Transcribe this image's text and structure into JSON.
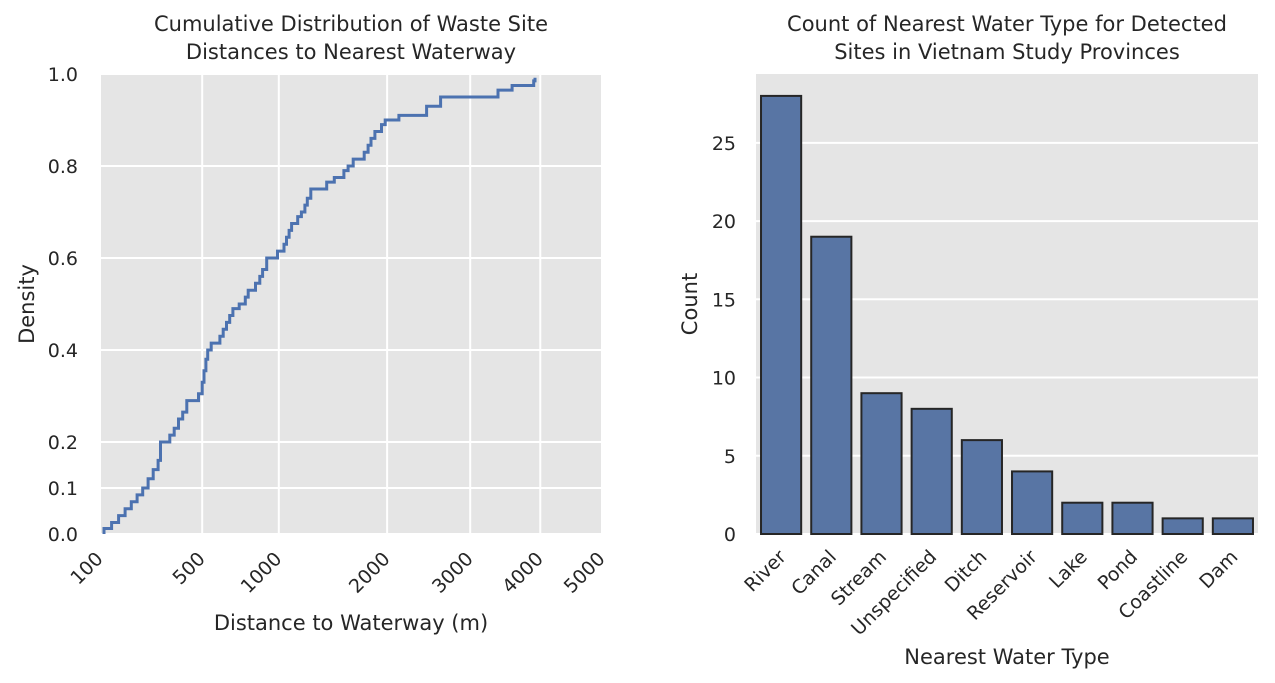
{
  "chart_data": [
    {
      "type": "line",
      "subtype": "ecdf",
      "title_line1": "Cumulative Distribution of Waste Site",
      "title_line2": "Distances to Nearest Waterway",
      "xlabel": "Distance to Waterway (m)",
      "ylabel": "Density",
      "xlim": [
        100,
        5000
      ],
      "ylim": [
        0,
        1
      ],
      "x_scale": "sqrt",
      "x_ticks": [
        100,
        500,
        1000,
        2000,
        3000,
        4000,
        5000
      ],
      "y_ticks": [
        0.0,
        0.1,
        0.2,
        0.4,
        0.6,
        0.8,
        1.0
      ],
      "y_tick_labels": [
        "0.0",
        "0.1",
        "0.2",
        "0.4",
        "0.6",
        "0.8",
        "1.0"
      ],
      "grid": true,
      "color": "#4c72b0",
      "points": [
        [
          110,
          0.012
        ],
        [
          130,
          0.025
        ],
        [
          150,
          0.04
        ],
        [
          170,
          0.055
        ],
        [
          190,
          0.07
        ],
        [
          210,
          0.085
        ],
        [
          230,
          0.1
        ],
        [
          250,
          0.12
        ],
        [
          270,
          0.14
        ],
        [
          290,
          0.16
        ],
        [
          300,
          0.2
        ],
        [
          340,
          0.215
        ],
        [
          360,
          0.23
        ],
        [
          380,
          0.25
        ],
        [
          400,
          0.265
        ],
        [
          420,
          0.29
        ],
        [
          480,
          0.305
        ],
        [
          500,
          0.33
        ],
        [
          510,
          0.355
        ],
        [
          520,
          0.38
        ],
        [
          530,
          0.4
        ],
        [
          550,
          0.415
        ],
        [
          600,
          0.43
        ],
        [
          620,
          0.445
        ],
        [
          640,
          0.46
        ],
        [
          660,
          0.475
        ],
        [
          680,
          0.49
        ],
        [
          720,
          0.5
        ],
        [
          760,
          0.515
        ],
        [
          780,
          0.53
        ],
        [
          830,
          0.545
        ],
        [
          860,
          0.56
        ],
        [
          880,
          0.575
        ],
        [
          910,
          0.6
        ],
        [
          990,
          0.615
        ],
        [
          1040,
          0.63
        ],
        [
          1060,
          0.645
        ],
        [
          1080,
          0.66
        ],
        [
          1100,
          0.675
        ],
        [
          1150,
          0.69
        ],
        [
          1180,
          0.7
        ],
        [
          1210,
          0.715
        ],
        [
          1230,
          0.73
        ],
        [
          1260,
          0.75
        ],
        [
          1400,
          0.765
        ],
        [
          1470,
          0.775
        ],
        [
          1560,
          0.79
        ],
        [
          1600,
          0.8
        ],
        [
          1650,
          0.815
        ],
        [
          1760,
          0.83
        ],
        [
          1800,
          0.845
        ],
        [
          1830,
          0.86
        ],
        [
          1870,
          0.875
        ],
        [
          1940,
          0.89
        ],
        [
          1980,
          0.9
        ],
        [
          2130,
          0.91
        ],
        [
          2450,
          0.93
        ],
        [
          2620,
          0.95
        ],
        [
          3380,
          0.965
        ],
        [
          3580,
          0.975
        ],
        [
          3900,
          0.985
        ],
        [
          3920,
          0.992
        ]
      ]
    },
    {
      "type": "bar",
      "title_line1": "Count of Nearest Water Type for Detected",
      "title_line2": "Sites in Vietnam Study Provinces",
      "xlabel": "Nearest Water Type",
      "ylabel": "Count",
      "categories": [
        "River",
        "Canal",
        "Stream",
        "Unspecified",
        "Ditch",
        "Reservoir",
        "Lake",
        "Pond",
        "Coastline",
        "Dam"
      ],
      "values": [
        28,
        19,
        9,
        8,
        6,
        4,
        2,
        2,
        1,
        1
      ],
      "ylim": [
        0,
        29.4
      ],
      "y_ticks": [
        0,
        5,
        10,
        15,
        20,
        25
      ],
      "grid": true,
      "color": "#5875a4"
    }
  ]
}
